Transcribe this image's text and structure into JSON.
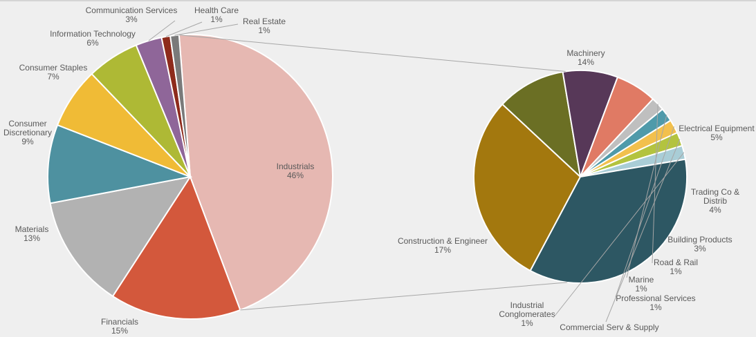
{
  "chart_data": [
    {
      "type": "pie",
      "categories": [
        "Industrials",
        "Financials",
        "Materials",
        "Consumer Discretionary",
        "Consumer Staples",
        "Information Technology",
        "Communication Services",
        "Health Care",
        "Real Estate"
      ],
      "values": [
        46,
        15,
        13,
        9,
        7,
        6,
        3,
        1,
        1
      ],
      "colors": [
        "#e6b8b2",
        "#d3583c",
        "#b2b2b2",
        "#4e91a0",
        "#f0bb36",
        "#aeb935",
        "#8f6699",
        "#8e2b1c",
        "#7a7a7a"
      ],
      "labels": [
        {
          "name": [
            "Industrials"
          ],
          "pct": "46%"
        },
        {
          "name": [
            "Financials"
          ],
          "pct": "15%"
        },
        {
          "name": [
            "Materials"
          ],
          "pct": "13%"
        },
        {
          "name": [
            "Consumer",
            "Discretionary"
          ],
          "pct": "9%"
        },
        {
          "name": [
            "Consumer Staples"
          ],
          "pct": "7%"
        },
        {
          "name": [
            "Information Technology"
          ],
          "pct": "6%"
        },
        {
          "name": [
            "Communication Services"
          ],
          "pct": "3%"
        },
        {
          "name": [
            "Health Care"
          ],
          "pct": "1%"
        },
        {
          "name": [
            "Real Estate"
          ],
          "pct": "1%"
        }
      ]
    },
    {
      "type": "pie",
      "categories": [
        "Machinery",
        "Electrical Equipment",
        "Trading Co & Distrib",
        "Building Products",
        "Road & Rail",
        "Marine",
        "Professional Services",
        "Commercial Serv & Supply",
        "Industrial Conglomerates",
        "Construction & Engineer"
      ],
      "values": [
        14,
        5,
        4,
        3,
        1,
        1,
        1,
        1,
        1,
        17
      ],
      "colors": [
        "#a3780e",
        "#6b6f24",
        "#573858",
        "#e07a64",
        "#bfbfbf",
        "#4f9aaa",
        "#f2c04d",
        "#b3c33f",
        "#a9cdd6",
        "#2d5763"
      ],
      "labels": [
        {
          "name": [
            "Machinery"
          ],
          "pct": "14%"
        },
        {
          "name": [
            "Electrical Equipment"
          ],
          "pct": "5%"
        },
        {
          "name": [
            "Trading Co &",
            "Distrib"
          ],
          "pct": "4%"
        },
        {
          "name": [
            "Building Products"
          ],
          "pct": "3%"
        },
        {
          "name": [
            "Road & Rail"
          ],
          "pct": "1%"
        },
        {
          "name": [
            "Marine"
          ],
          "pct": "1%"
        },
        {
          "name": [
            "Professional Services"
          ],
          "pct": "1%"
        },
        {
          "name": [
            "Commercial Serv & Supply"
          ],
          "pct": ""
        },
        {
          "name": [
            "Industrial",
            "Conglomerates"
          ],
          "pct": "1%"
        },
        {
          "name": [
            "Construction & Engineer"
          ],
          "pct": "17%"
        }
      ]
    }
  ]
}
